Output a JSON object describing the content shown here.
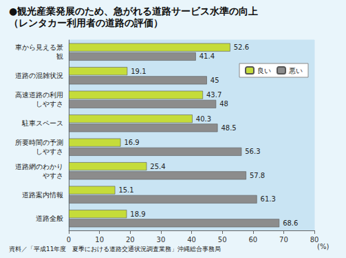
{
  "chart_data": {
    "type": "bar",
    "orientation": "horizontal",
    "title": "●観光産業発展のため、急がれる道路サービス水準の向上",
    "subtitle": "（レンタカー利用者の道路の評価）",
    "source": "資料／「平成11年度　夏季における道路交通状況調査業務」沖縄総合事務局",
    "xlabel": "(%)",
    "categories": [
      "車から見える景観",
      "道路の混雑状況",
      "高速道路の利用しやすさ",
      "駐車スペース",
      "所要時間の予測しやすさ",
      "道路網のわかりやすさ",
      "道路案内情報",
      "道路全般"
    ],
    "series": [
      {
        "name": "良い",
        "color": "#c5dc3a",
        "values": [
          52.6,
          19.1,
          43.7,
          40.3,
          16.9,
          25.4,
          15.1,
          18.9
        ]
      },
      {
        "name": "悪い",
        "color": "#8c8c8c",
        "values": [
          41.4,
          45,
          48,
          48.5,
          56.3,
          57.8,
          61.3,
          68.6
        ]
      }
    ],
    "xlim": [
      0,
      80
    ],
    "xticks": [
      0,
      10,
      20,
      30,
      40,
      50,
      60,
      70,
      80
    ],
    "data_labels": true,
    "legend": "upper right",
    "grid": false
  }
}
